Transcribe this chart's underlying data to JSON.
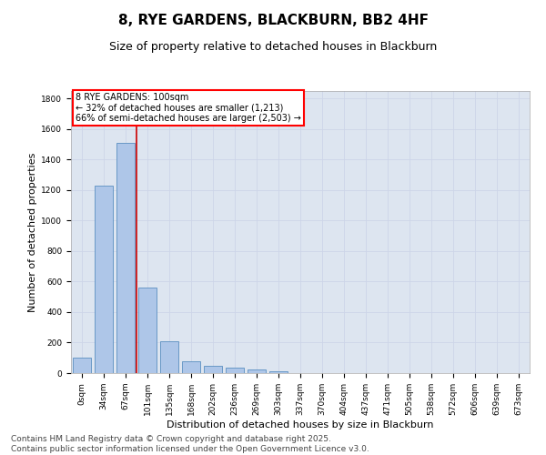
{
  "title": "8, RYE GARDENS, BLACKBURN, BB2 4HF",
  "subtitle": "Size of property relative to detached houses in Blackburn",
  "xlabel": "Distribution of detached houses by size in Blackburn",
  "ylabel": "Number of detached properties",
  "categories": [
    "0sqm",
    "34sqm",
    "67sqm",
    "101sqm",
    "135sqm",
    "168sqm",
    "202sqm",
    "236sqm",
    "269sqm",
    "303sqm",
    "337sqm",
    "370sqm",
    "404sqm",
    "437sqm",
    "471sqm",
    "505sqm",
    "538sqm",
    "572sqm",
    "606sqm",
    "639sqm",
    "673sqm"
  ],
  "values": [
    100,
    1230,
    1510,
    560,
    210,
    75,
    50,
    38,
    22,
    10,
    0,
    0,
    0,
    0,
    0,
    0,
    0,
    0,
    0,
    0,
    0
  ],
  "bar_color": "#aec6e8",
  "bar_edge_color": "#5a8fc0",
  "vline_x_index": 2.5,
  "marker_label": "8 RYE GARDENS: 100sqm",
  "annotation_line1": "← 32% of detached houses are smaller (1,213)",
  "annotation_line2": "66% of semi-detached houses are larger (2,503) →",
  "vline_color": "#cc0000",
  "ylim": [
    0,
    1850
  ],
  "yticks": [
    0,
    200,
    400,
    600,
    800,
    1000,
    1200,
    1400,
    1600,
    1800
  ],
  "grid_color": "#cdd5e8",
  "bg_color": "#dde5f0",
  "footer_line1": "Contains HM Land Registry data © Crown copyright and database right 2025.",
  "footer_line2": "Contains public sector information licensed under the Open Government Licence v3.0.",
  "title_fontsize": 11,
  "subtitle_fontsize": 9,
  "tick_fontsize": 6.5,
  "axis_label_fontsize": 8,
  "footer_fontsize": 6.5
}
